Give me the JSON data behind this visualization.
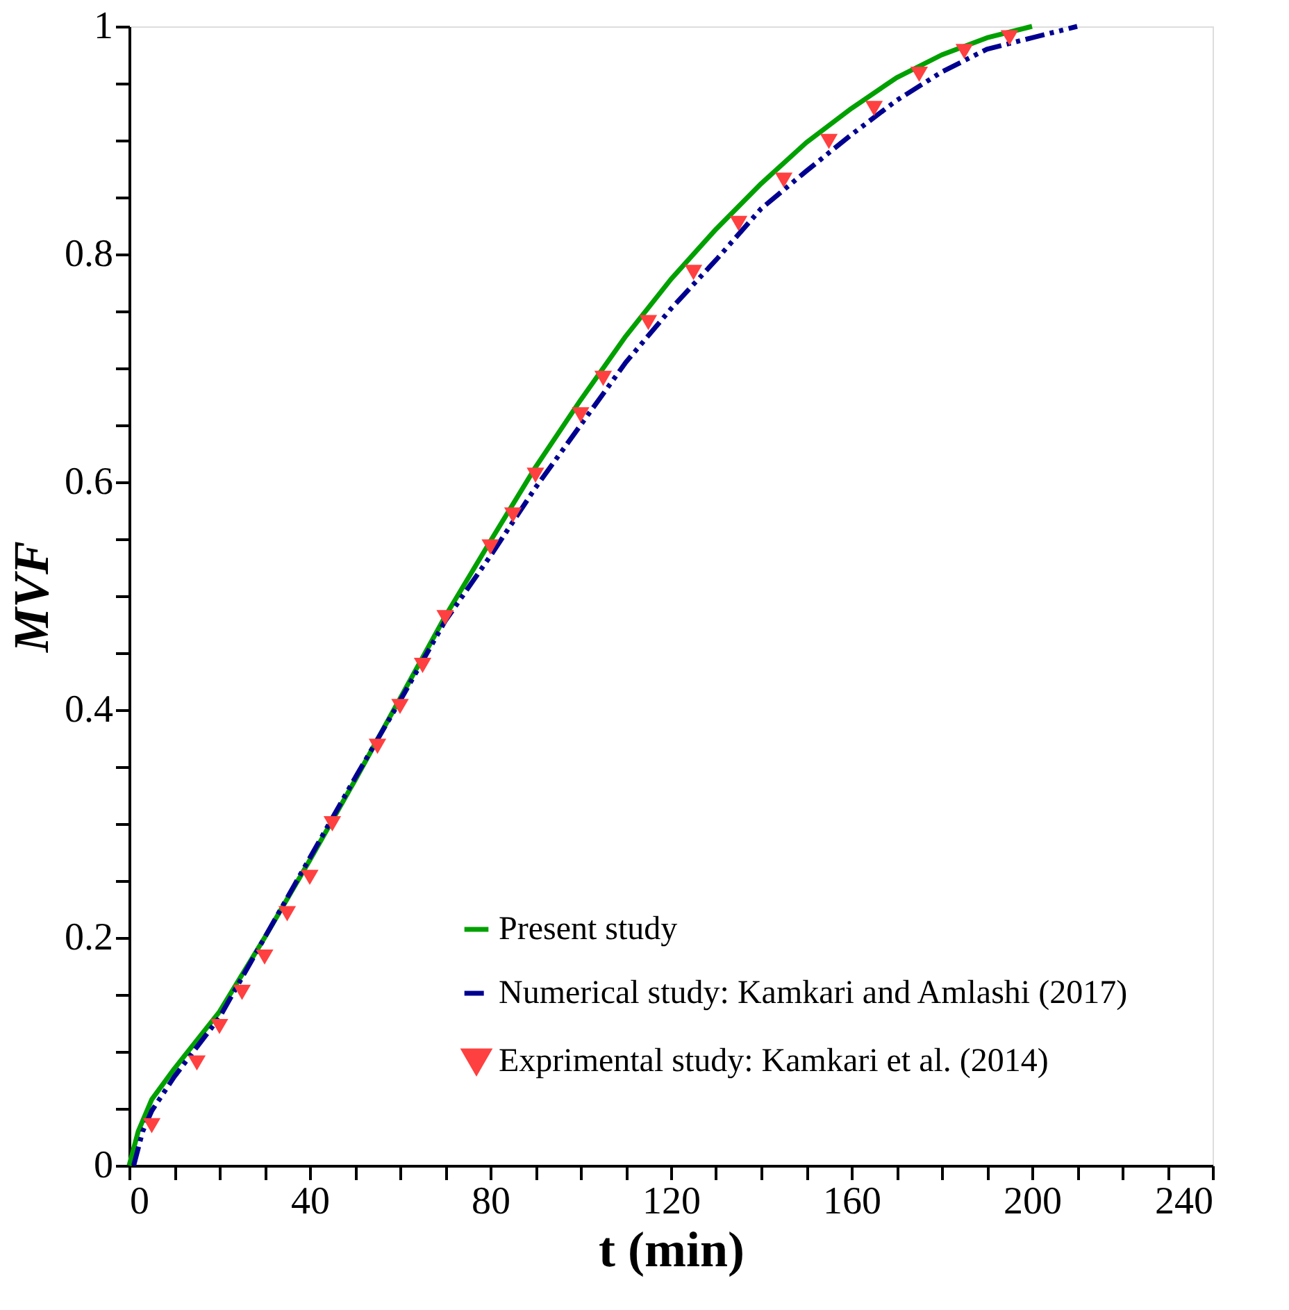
{
  "chart_data": {
    "type": "line",
    "xlabel": "t (min)",
    "ylabel": "MVF",
    "xlim": [
      0,
      240
    ],
    "ylim": [
      0,
      1
    ],
    "xticks": [
      0,
      {
        "value": 10,
        "label": null
      },
      {
        "value": 20,
        "label": null
      },
      {
        "value": 30,
        "label": null
      },
      40,
      {
        "value": 50,
        "label": null
      },
      {
        "value": 60,
        "label": null
      },
      {
        "value": 70,
        "label": null
      },
      80,
      {
        "value": 90,
        "label": null
      },
      {
        "value": 100,
        "label": null
      },
      {
        "value": 110,
        "label": null
      },
      120,
      {
        "value": 130,
        "label": null
      },
      {
        "value": 140,
        "label": null
      },
      {
        "value": 150,
        "label": null
      },
      160,
      {
        "value": 170,
        "label": null
      },
      {
        "value": 180,
        "label": null
      },
      {
        "value": 190,
        "label": null
      },
      200,
      {
        "value": 210,
        "label": null
      },
      {
        "value": 220,
        "label": null
      },
      {
        "value": 230,
        "label": null
      },
      240
    ],
    "yticks": [
      0,
      {
        "value": 0.05,
        "label": null
      },
      {
        "value": 0.1,
        "label": null
      },
      {
        "value": 0.15,
        "label": null
      },
      0.2,
      {
        "value": 0.25,
        "label": null
      },
      {
        "value": 0.3,
        "label": null
      },
      {
        "value": 0.35,
        "label": null
      },
      0.4,
      {
        "value": 0.45,
        "label": null
      },
      {
        "value": 0.5,
        "label": null
      },
      {
        "value": 0.55,
        "label": null
      },
      0.6,
      {
        "value": 0.65,
        "label": null
      },
      {
        "value": 0.7,
        "label": null
      },
      {
        "value": 0.75,
        "label": null
      },
      0.8,
      {
        "value": 0.85,
        "label": null
      },
      {
        "value": 0.9,
        "label": null
      },
      {
        "value": 0.95,
        "label": null
      },
      1
    ],
    "grid": false,
    "legend": "bottom right",
    "series": [
      {
        "name": "Present study",
        "line_style": "solid",
        "color": "#00a000",
        "x": [
          0,
          2,
          5,
          10,
          20,
          30,
          40,
          50,
          60,
          70,
          80,
          90,
          100,
          110,
          120,
          130,
          140,
          150,
          160,
          170,
          180,
          190,
          200
        ],
        "values": [
          0,
          0.03,
          0.058,
          0.085,
          0.135,
          0.2,
          0.268,
          0.338,
          0.41,
          0.482,
          0.548,
          0.613,
          0.672,
          0.728,
          0.778,
          0.822,
          0.862,
          0.898,
          0.928,
          0.955,
          0.975,
          0.99,
          1.0
        ]
      },
      {
        "name": "Numerical study: Kamkari and Amlashi (2017)",
        "line_style": "dashed",
        "color": "#000090",
        "x": [
          1,
          3,
          5,
          10,
          20,
          30,
          40,
          50,
          60,
          70,
          80,
          90,
          100,
          110,
          120,
          130,
          140,
          150,
          160,
          170,
          180,
          190,
          200,
          210
        ],
        "values": [
          0,
          0.03,
          0.048,
          0.078,
          0.13,
          0.2,
          0.27,
          0.34,
          0.408,
          0.478,
          0.535,
          0.595,
          0.65,
          0.705,
          0.752,
          0.795,
          0.84,
          0.873,
          0.905,
          0.935,
          0.96,
          0.98,
          0.99,
          1.0
        ]
      },
      {
        "name": "Exprimental study: Kamkari et al. (2014)",
        "type": "scatter",
        "marker": "triangle",
        "color": "#ff4040",
        "x": [
          5,
          15,
          20,
          25,
          30,
          35,
          40,
          45,
          55,
          60,
          65,
          70,
          80,
          85,
          90,
          100,
          105,
          115,
          125,
          135,
          145,
          155,
          165,
          175,
          185,
          195
        ],
        "values": [
          0.035,
          0.09,
          0.122,
          0.152,
          0.183,
          0.221,
          0.253,
          0.3,
          0.368,
          0.403,
          0.439,
          0.481,
          0.543,
          0.571,
          0.606,
          0.659,
          0.691,
          0.74,
          0.784,
          0.827,
          0.865,
          0.899,
          0.928,
          0.958,
          0.978,
          0.99
        ]
      }
    ]
  }
}
